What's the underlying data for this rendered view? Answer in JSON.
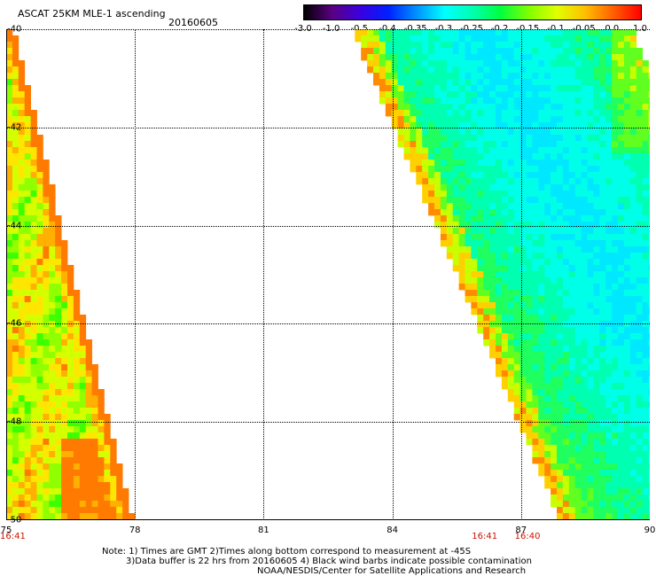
{
  "header": {
    "title": "ASCAT 25KM MLE-1 ascending",
    "date": "20160605"
  },
  "colorbar": {
    "labels": [
      "-3.0",
      "-1.0",
      "-0.5",
      "-0.4",
      "-0.35",
      "-0.3",
      "-0.25",
      "-0.2",
      "-0.15",
      "-0.1",
      "-0.05",
      "0.0",
      "1.0"
    ],
    "colors": [
      "#000000",
      "#5a0082",
      "#3a00e0",
      "#0020ff",
      "#0090ff",
      "#00ffff",
      "#00ffb0",
      "#00ff40",
      "#80ff00",
      "#e0ff00",
      "#ffc000",
      "#ff6000",
      "#ff0000"
    ]
  },
  "map": {
    "lat_labels": [
      "-40",
      "-42",
      "-44",
      "-46",
      "-48",
      "-50"
    ],
    "lon_labels": [
      "75",
      "78",
      "81",
      "84",
      "87",
      "90"
    ],
    "lat_range": [
      -50,
      -40
    ],
    "lon_range": [
      75,
      90
    ],
    "time_labels": [
      {
        "text": "16:41",
        "lon": 75
      },
      {
        "text": "16:41",
        "lon": 86.1
      },
      {
        "text": "16:40",
        "lon": 87.1
      }
    ],
    "swaths": [
      {
        "name": "west",
        "dominant": "yellow-green",
        "edge": "orange"
      },
      {
        "name": "east",
        "dominant": "cyan-green",
        "edge": "orange"
      }
    ]
  },
  "notes": {
    "line1": "Note: 1) Times are GMT 2)Times along bottom correspond to measurement at -45S",
    "line2": "3)Data buffer is 22 hrs from 20160605 4) Black wind barbs indicate possible contamination",
    "line3": "NOAA/NESDIS/Center for Satellite Applications and Research"
  }
}
